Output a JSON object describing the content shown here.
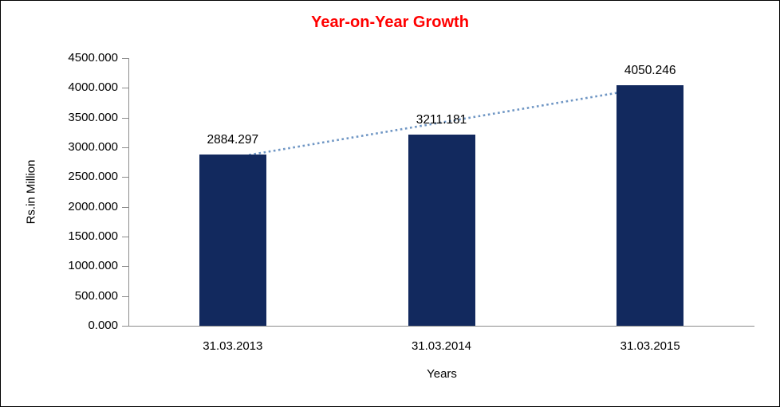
{
  "chart_data": {
    "type": "bar",
    "title": "Year-on-Year Growth",
    "xlabel": "Years",
    "ylabel": "Rs.in Million",
    "categories": [
      "31.03.2013",
      "31.03.2014",
      "31.03.2015"
    ],
    "values": [
      2884.297,
      3211.181,
      4050.246
    ],
    "data_labels": [
      "2884.297",
      "3211.181",
      "4050.246"
    ],
    "ylim": [
      0,
      4500
    ],
    "ytick_step": 500,
    "ytick_labels": [
      "0.000",
      "500.000",
      "1000.000",
      "1500.000",
      "2000.000",
      "2500.000",
      "3000.000",
      "3500.000",
      "4000.000",
      "4500.000"
    ],
    "value_decimals": 3,
    "grid": false,
    "legend_position": "none",
    "has_trendline": true,
    "colors": {
      "bar": "#12295E",
      "title": "#FF0000",
      "trendline": "#6F96C4",
      "axis": "#8C8C8C",
      "text": "#000000"
    }
  }
}
